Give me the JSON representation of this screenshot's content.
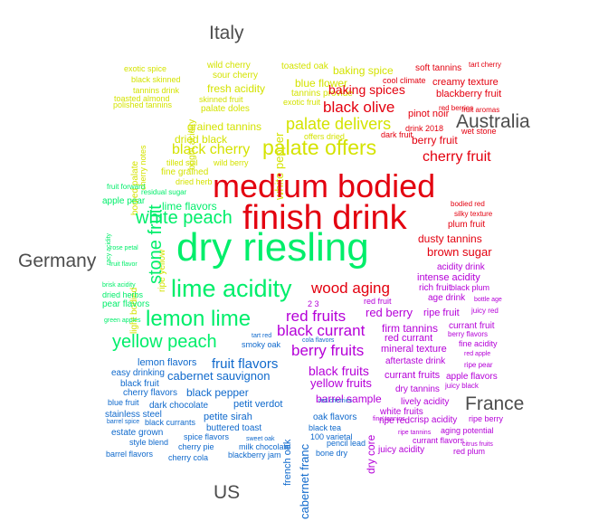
{
  "chart_data": {
    "type": "comparison-wordcloud",
    "colors": {
      "Italy": "#d4e300",
      "Australia": "#e3000f",
      "Germany": "#00ee6a",
      "France": "#b500d8",
      "US": "#0f69cc",
      "label": "#4d4d4d"
    },
    "group_labels": [
      "Italy",
      "Australia",
      "Germany",
      "France",
      "US"
    ],
    "groups": [
      {
        "name": "Italy",
        "terms": [
          "palate offers",
          "palate delivers",
          "black cherry",
          "exotic spice",
          "black skinned",
          "tannins drink",
          "polished tannins",
          "toasted almond",
          "wild cherry",
          "sour cherry",
          "fresh acidity",
          "skinned fruit",
          "palate doles",
          "grained tannins",
          "dried black",
          "tilled soil",
          "wild berry",
          "fine grained",
          "toasted oak",
          "baking spice",
          "tannins provide",
          "blue flower",
          "exotic fruit",
          "offers dried",
          "white pepper",
          "bright acidity",
          "bodied palate",
          "cherry notes",
          "ripe yellow",
          "light bodied",
          "dried herb"
        ]
      },
      {
        "name": "Australia",
        "terms": [
          "medium bodied",
          "finish drink",
          "cherry fruit",
          "black olive",
          "baking spices",
          "wood aging",
          "brown sugar",
          "dusty tannins",
          "plum fruit",
          "pinot noir",
          "berry fruit",
          "blackberry fruit",
          "creamy texture",
          "cool climate",
          "soft tannins",
          "tart cherry",
          "red berries",
          "fruit aromas",
          "drink 2018",
          "dark fruit",
          "wet stone",
          "bodied red",
          "silky texture"
        ]
      },
      {
        "name": "Germany",
        "terms": [
          "dry riesling",
          "lime acidity",
          "lemon lime",
          "yellow peach",
          "white peach",
          "stone fruit",
          "lime flavors",
          "fruit forward",
          "residual sugar",
          "apple pear",
          "rose petal",
          "fruit flavor",
          "brisk acidity",
          "dried herbs",
          "pear flavors",
          "green apples",
          "racy acidity"
        ]
      },
      {
        "name": "France",
        "terms": [
          "red fruits",
          "black currant",
          "berry fruits",
          "red berry",
          "ripe fruit",
          "black fruits",
          "yellow fruits",
          "barrel sample",
          "firm tannins",
          "red currant",
          "mineral texture",
          "aftertaste drink",
          "intense acidity",
          "acidity drink",
          "rich fruit",
          "black plum",
          "age drink",
          "bottle age",
          "red fruit",
          "juicy red",
          "currant fruit",
          "berry flavors",
          "fine acidity",
          "red apple",
          "ripe pear",
          "apple flavors",
          "juicy black",
          "currant fruits",
          "dry tannins",
          "lively acidity",
          "white fruits",
          "ripe red",
          "crisp acidity",
          "ripe berry",
          "aging potential",
          "currant flavors",
          "citrus fruits",
          "red plum",
          "ripe tannins",
          "juicy acidity",
          "dry core",
          "fine tannins",
          "2 3"
        ]
      },
      {
        "name": "US",
        "terms": [
          "fruit flavors",
          "cabernet sauvignon",
          "black pepper",
          "lemon flavors",
          "easy drinking",
          "black fruit",
          "cherry flavors",
          "blue fruit",
          "dark chocolate",
          "petit verdot",
          "stainless steel",
          "petite sirah",
          "black currants",
          "barrel spice",
          "estate grown",
          "buttered toast",
          "spice flavors",
          "style blend",
          "barrel flavors",
          "cherry pie",
          "cherry cola",
          "milk chocolate",
          "blackberry jam",
          "sweet oak",
          "smoky oak",
          "tart red",
          "cola flavors",
          "oak flavors",
          "black tea",
          "100 varietal",
          "pencil lead",
          "bone dry",
          "french oak",
          "cabernet franc",
          "red cherries"
        ]
      }
    ]
  }
}
